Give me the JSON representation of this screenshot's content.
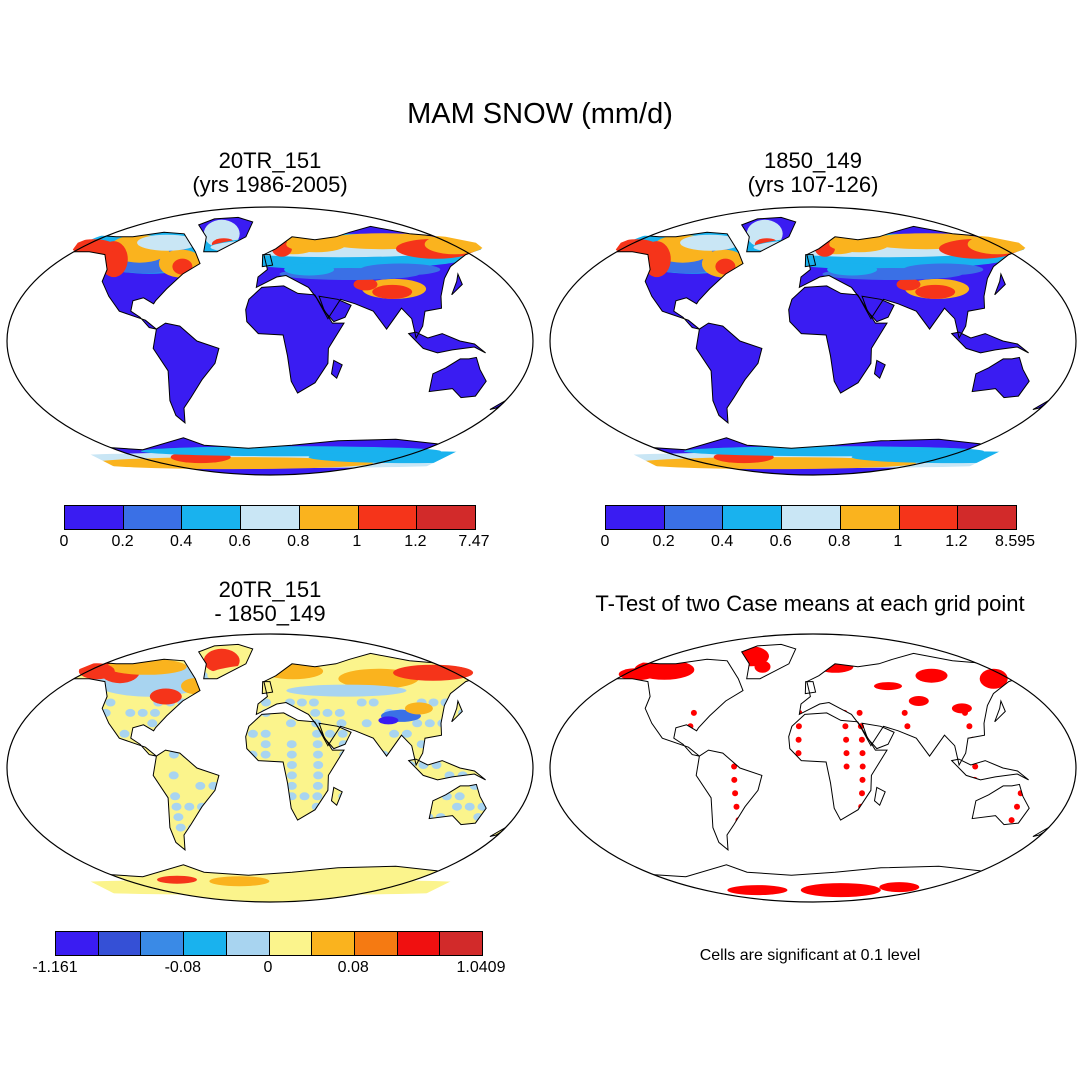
{
  "figure": {
    "title": "MAM SNOW (mm/d)",
    "panels": [
      {
        "id": "p1",
        "title_line1": "20TR_151",
        "title_line2": "(yrs 1986-2005)"
      },
      {
        "id": "p2",
        "title_line1": "1850_149",
        "title_line2": "(yrs 107-126)"
      },
      {
        "id": "p3",
        "title_line1": "20TR_151",
        "title_line2": "- 1850_149"
      },
      {
        "id": "p4",
        "title_line1": "T-Test of two Case means at each grid point"
      }
    ],
    "significance_note": "Cells are significant at 0.1 level"
  },
  "colorbars": {
    "snow1": {
      "colors": [
        "#3a1cf2",
        "#3a70e6",
        "#19b2ee",
        "#c9e6f5",
        "#fab31e",
        "#f5341a",
        "#d22a2a"
      ],
      "ticks": [
        "0",
        "0.2",
        "0.4",
        "0.6",
        "0.8",
        "1",
        "1.2",
        "7.47"
      ]
    },
    "snow2": {
      "colors": [
        "#3a1cf2",
        "#3a70e6",
        "#19b2ee",
        "#c9e6f5",
        "#fab31e",
        "#f5341a",
        "#d22a2a"
      ],
      "ticks": [
        "0",
        "0.2",
        "0.4",
        "0.6",
        "0.8",
        "1",
        "1.2",
        "8.595"
      ]
    },
    "diff": {
      "colors": [
        "#3a1cf2",
        "#3550d6",
        "#3a8ae6",
        "#19b2ee",
        "#a8d4f0",
        "#fbf48c",
        "#fab31e",
        "#f57a12",
        "#f01010",
        "#d22a2a"
      ],
      "ticks": [
        {
          "label": "-1.161",
          "boundary": 0
        },
        {
          "label": "-0.08",
          "boundary": 3
        },
        {
          "label": "0",
          "boundary": 5
        },
        {
          "label": "0.08",
          "boundary": 7
        },
        {
          "label": "1.0409",
          "boundary": 10
        }
      ]
    }
  },
  "map_colors": {
    "low": "#3a1cf2",
    "mid": "#3a70e6",
    "light": "#19b2ee",
    "pale": "#c9e6f5",
    "orange": "#fab31e",
    "red": "#f5341a",
    "dark_red": "#d22a2a",
    "diff_blue": "#a8d4f0",
    "diff_yellow": "#fbf48c",
    "sig_red": "#ff0000"
  }
}
